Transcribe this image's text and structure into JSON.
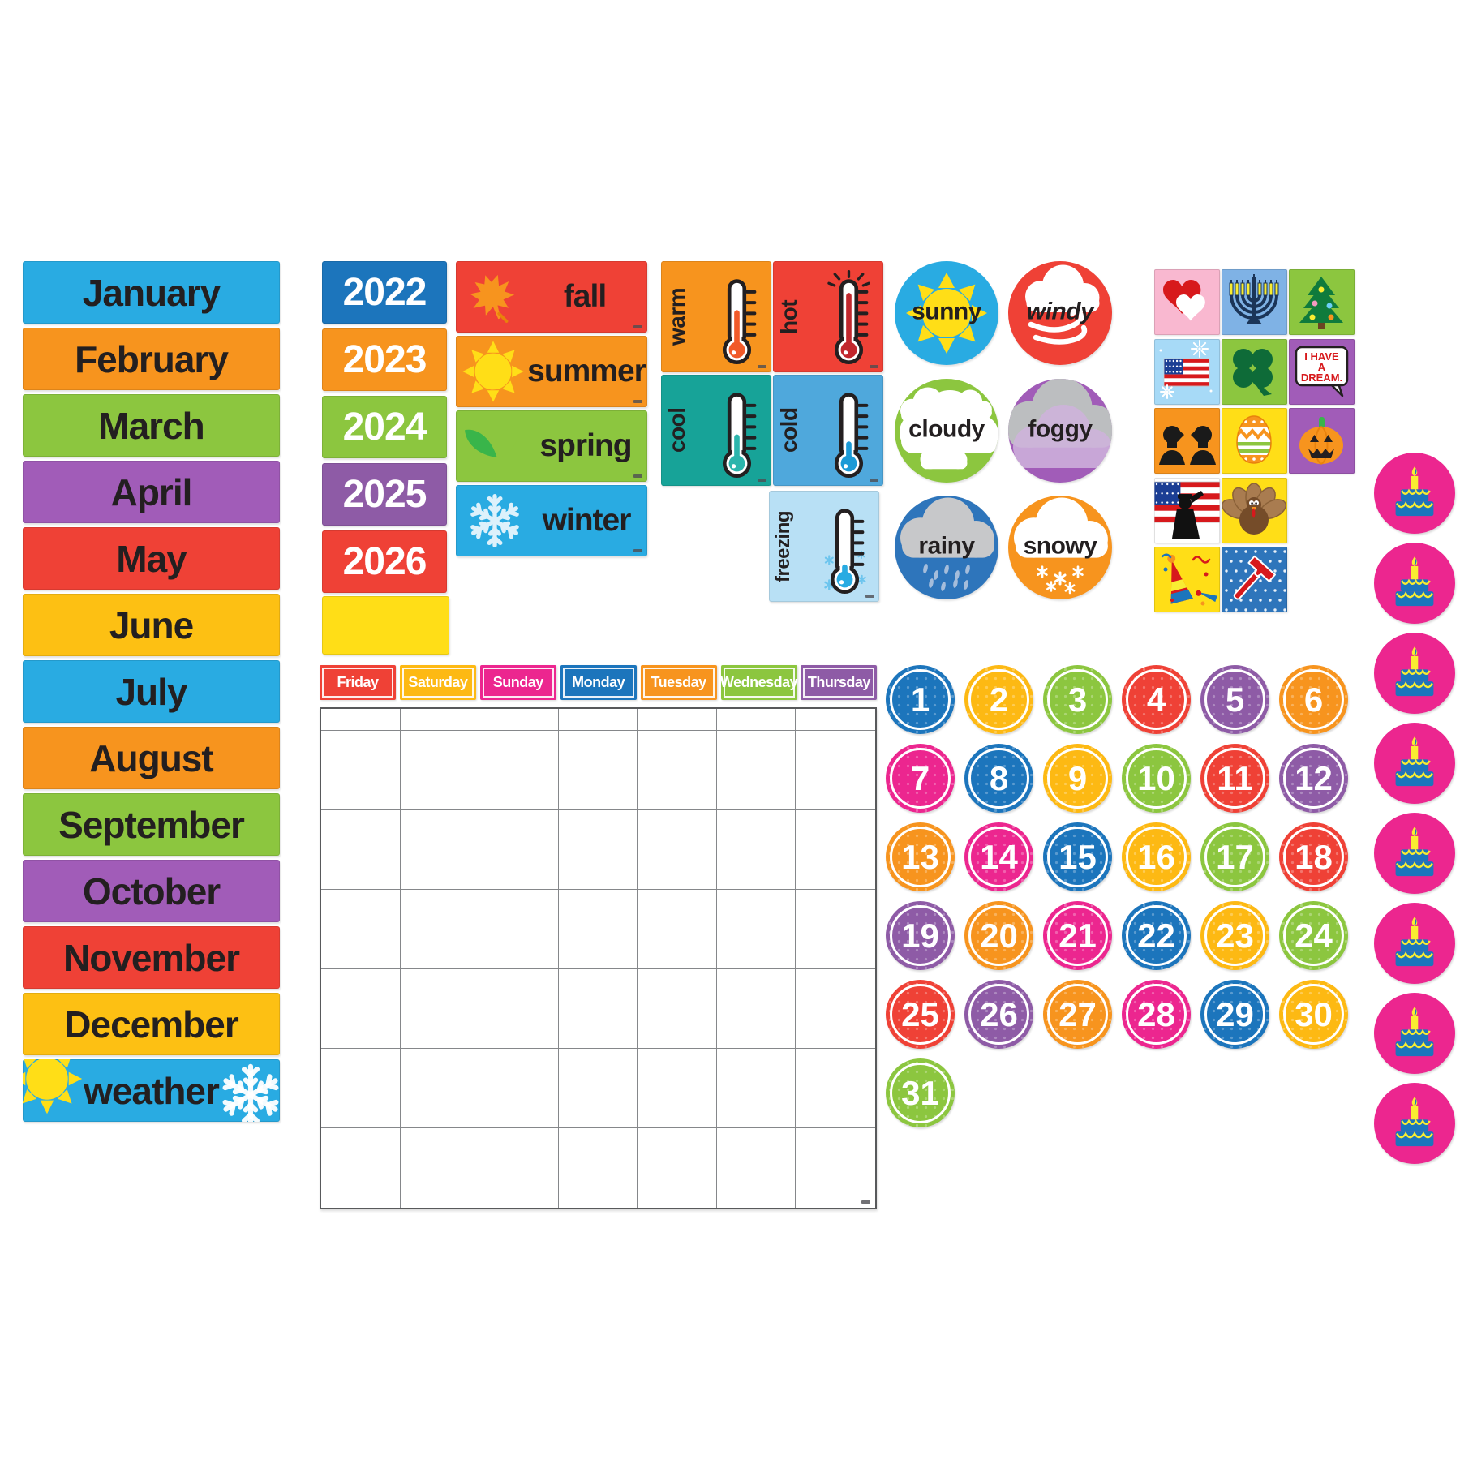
{
  "months": {
    "items": [
      {
        "label": "January",
        "color": "#29ABE2"
      },
      {
        "label": "February",
        "color": "#F7941E"
      },
      {
        "label": "March",
        "color": "#8CC63F"
      },
      {
        "label": "April",
        "color": "#A15CB8"
      },
      {
        "label": "May",
        "color": "#EF4136"
      },
      {
        "label": "June",
        "color": "#FDC013"
      },
      {
        "label": "July",
        "color": "#29ABE2"
      },
      {
        "label": "August",
        "color": "#F7941E"
      },
      {
        "label": "September",
        "color": "#8CC63F"
      },
      {
        "label": "October",
        "color": "#A15CB8"
      },
      {
        "label": "November",
        "color": "#EF4136"
      },
      {
        "label": "December",
        "color": "#FDC013"
      }
    ],
    "weather_header": {
      "label": "weather",
      "color": "#29ABE2",
      "icons": [
        "sun",
        "snowflake"
      ]
    }
  },
  "years": {
    "items": [
      {
        "label": "2022",
        "color": "#1C75BC"
      },
      {
        "label": "2023",
        "color": "#F7941E"
      },
      {
        "label": "2024",
        "color": "#8CC63F"
      },
      {
        "label": "2025",
        "color": "#8E5BA6"
      },
      {
        "label": "2026",
        "color": "#EF4136"
      }
    ],
    "blank_card_color": "#FFDE17"
  },
  "seasons": [
    {
      "label": "fall",
      "color": "#EF4136",
      "icon": "maple-leaf"
    },
    {
      "label": "summer",
      "color": "#F7941E",
      "icon": "sun"
    },
    {
      "label": "spring",
      "color": "#8CC63F",
      "icon": "leaves"
    },
    {
      "label": "winter",
      "color": "#29ABE2",
      "icon": "snowflake"
    }
  ],
  "temperatures": [
    {
      "label": "warm",
      "color": "#F7941E",
      "mercury": "#F15A29",
      "level": 0.58,
      "icon": "thermometer"
    },
    {
      "label": "hot",
      "color": "#EF4136",
      "mercury": "#C1272D",
      "level": 0.92,
      "icon": "thermometer-rays"
    },
    {
      "label": "cool",
      "color": "#17A398",
      "mercury": "#2BB5AC",
      "level": 0.38,
      "icon": "thermometer"
    },
    {
      "label": "cold",
      "color": "#4FA8DC",
      "mercury": "#1C9AD6",
      "level": 0.24,
      "icon": "thermometer"
    },
    {
      "label": "freezing",
      "color": "#B8E0F5",
      "mercury": "#29ABE2",
      "level": 0.1,
      "icon": "thermometer-snow"
    }
  ],
  "weather_conditions": [
    {
      "label": "sunny",
      "color": "#29ABE2",
      "icon": "sun"
    },
    {
      "label": "windy",
      "color": "#EF4136",
      "icon": "wind-cloud",
      "italic": true
    },
    {
      "label": "cloudy",
      "color": "#8CC63F",
      "icon": "clouds"
    },
    {
      "label": "foggy",
      "color": "#A15CB8",
      "icon": "fog-cloud"
    },
    {
      "label": "rainy",
      "color": "#2E75BB",
      "icon": "rain-cloud"
    },
    {
      "label": "snowy",
      "color": "#F7941E",
      "icon": "snow-cloud"
    }
  ],
  "holidays": [
    {
      "name": "valentines-day-hearts",
      "bg": "#F9B8D0"
    },
    {
      "name": "hanukkah-menorah",
      "bg": "#7FB2E5"
    },
    {
      "name": "christmas-tree",
      "bg": "#8CC63F"
    },
    {
      "name": "independence-day-flag-fireworks",
      "bg": "#A7DAF7"
    },
    {
      "name": "st-patricks-day-shamrock",
      "bg": "#8CC63F"
    },
    {
      "name": "mlk-day-speech-bubble",
      "bg": "#A15CB8",
      "text_lines": [
        "I HAVE",
        "A",
        "DREAM."
      ]
    },
    {
      "name": "presidents-day-silhouettes",
      "bg": "#F7941E"
    },
    {
      "name": "easter-egg",
      "bg": "#FFDE17"
    },
    {
      "name": "halloween-pumpkin",
      "bg": "#A15CB8"
    },
    {
      "name": "veterans-day-soldier-flag",
      "bg": "#FFFFFF"
    },
    {
      "name": "thanksgiving-turkey",
      "bg": "#FFDE17"
    },
    {
      "name": "new-years-party-hat",
      "bg": "#FFDE17"
    },
    {
      "name": "labor-day-hammer",
      "bg": "#2E75BB"
    }
  ],
  "calendar": {
    "day_headers": [
      {
        "label": "Friday",
        "color": "#EF4136"
      },
      {
        "label": "Saturday",
        "color": "#FDB913"
      },
      {
        "label": "Sunday",
        "color": "#EC268F"
      },
      {
        "label": "Monday",
        "color": "#1C75BC"
      },
      {
        "label": "Tuesday",
        "color": "#F7941E"
      },
      {
        "label": "Wednesday",
        "color": "#8CC63F"
      },
      {
        "label": "Thursday",
        "color": "#8E5BA6"
      }
    ],
    "columns": 7,
    "note_row_count": 1,
    "week_row_count": 6,
    "cells_are_blank": true
  },
  "numbers": [
    {
      "value": "1",
      "color": "#1C75BC"
    },
    {
      "value": "2",
      "color": "#FDB913"
    },
    {
      "value": "3",
      "color": "#8CC63F"
    },
    {
      "value": "4",
      "color": "#EF4136"
    },
    {
      "value": "5",
      "color": "#8E5BA6"
    },
    {
      "value": "6",
      "color": "#F7941E"
    },
    {
      "value": "7",
      "color": "#EC268F"
    },
    {
      "value": "8",
      "color": "#1C75BC"
    },
    {
      "value": "9",
      "color": "#FDB913"
    },
    {
      "value": "10",
      "color": "#8CC63F"
    },
    {
      "value": "11",
      "color": "#EF4136"
    },
    {
      "value": "12",
      "color": "#8E5BA6"
    },
    {
      "value": "13",
      "color": "#F7941E"
    },
    {
      "value": "14",
      "color": "#EC268F"
    },
    {
      "value": "15",
      "color": "#1C75BC"
    },
    {
      "value": "16",
      "color": "#FDB913"
    },
    {
      "value": "17",
      "color": "#8CC63F"
    },
    {
      "value": "18",
      "color": "#EF4136"
    },
    {
      "value": "19",
      "color": "#8E5BA6"
    },
    {
      "value": "20",
      "color": "#F7941E"
    },
    {
      "value": "21",
      "color": "#EC268F"
    },
    {
      "value": "22",
      "color": "#1C75BC"
    },
    {
      "value": "23",
      "color": "#FDB913"
    },
    {
      "value": "24",
      "color": "#8CC63F"
    },
    {
      "value": "25",
      "color": "#EF4136"
    },
    {
      "value": "26",
      "color": "#8E5BA6"
    },
    {
      "value": "27",
      "color": "#F7941E"
    },
    {
      "value": "28",
      "color": "#EC268F"
    },
    {
      "value": "29",
      "color": "#1C75BC"
    },
    {
      "value": "30",
      "color": "#FDB913"
    },
    {
      "value": "31",
      "color": "#8CC63F"
    }
  ],
  "birthday_cakes": {
    "count": 8,
    "circle_color": "#EC268F",
    "cake_color": "#1C75BC",
    "accent_color": "#F9ED32"
  }
}
